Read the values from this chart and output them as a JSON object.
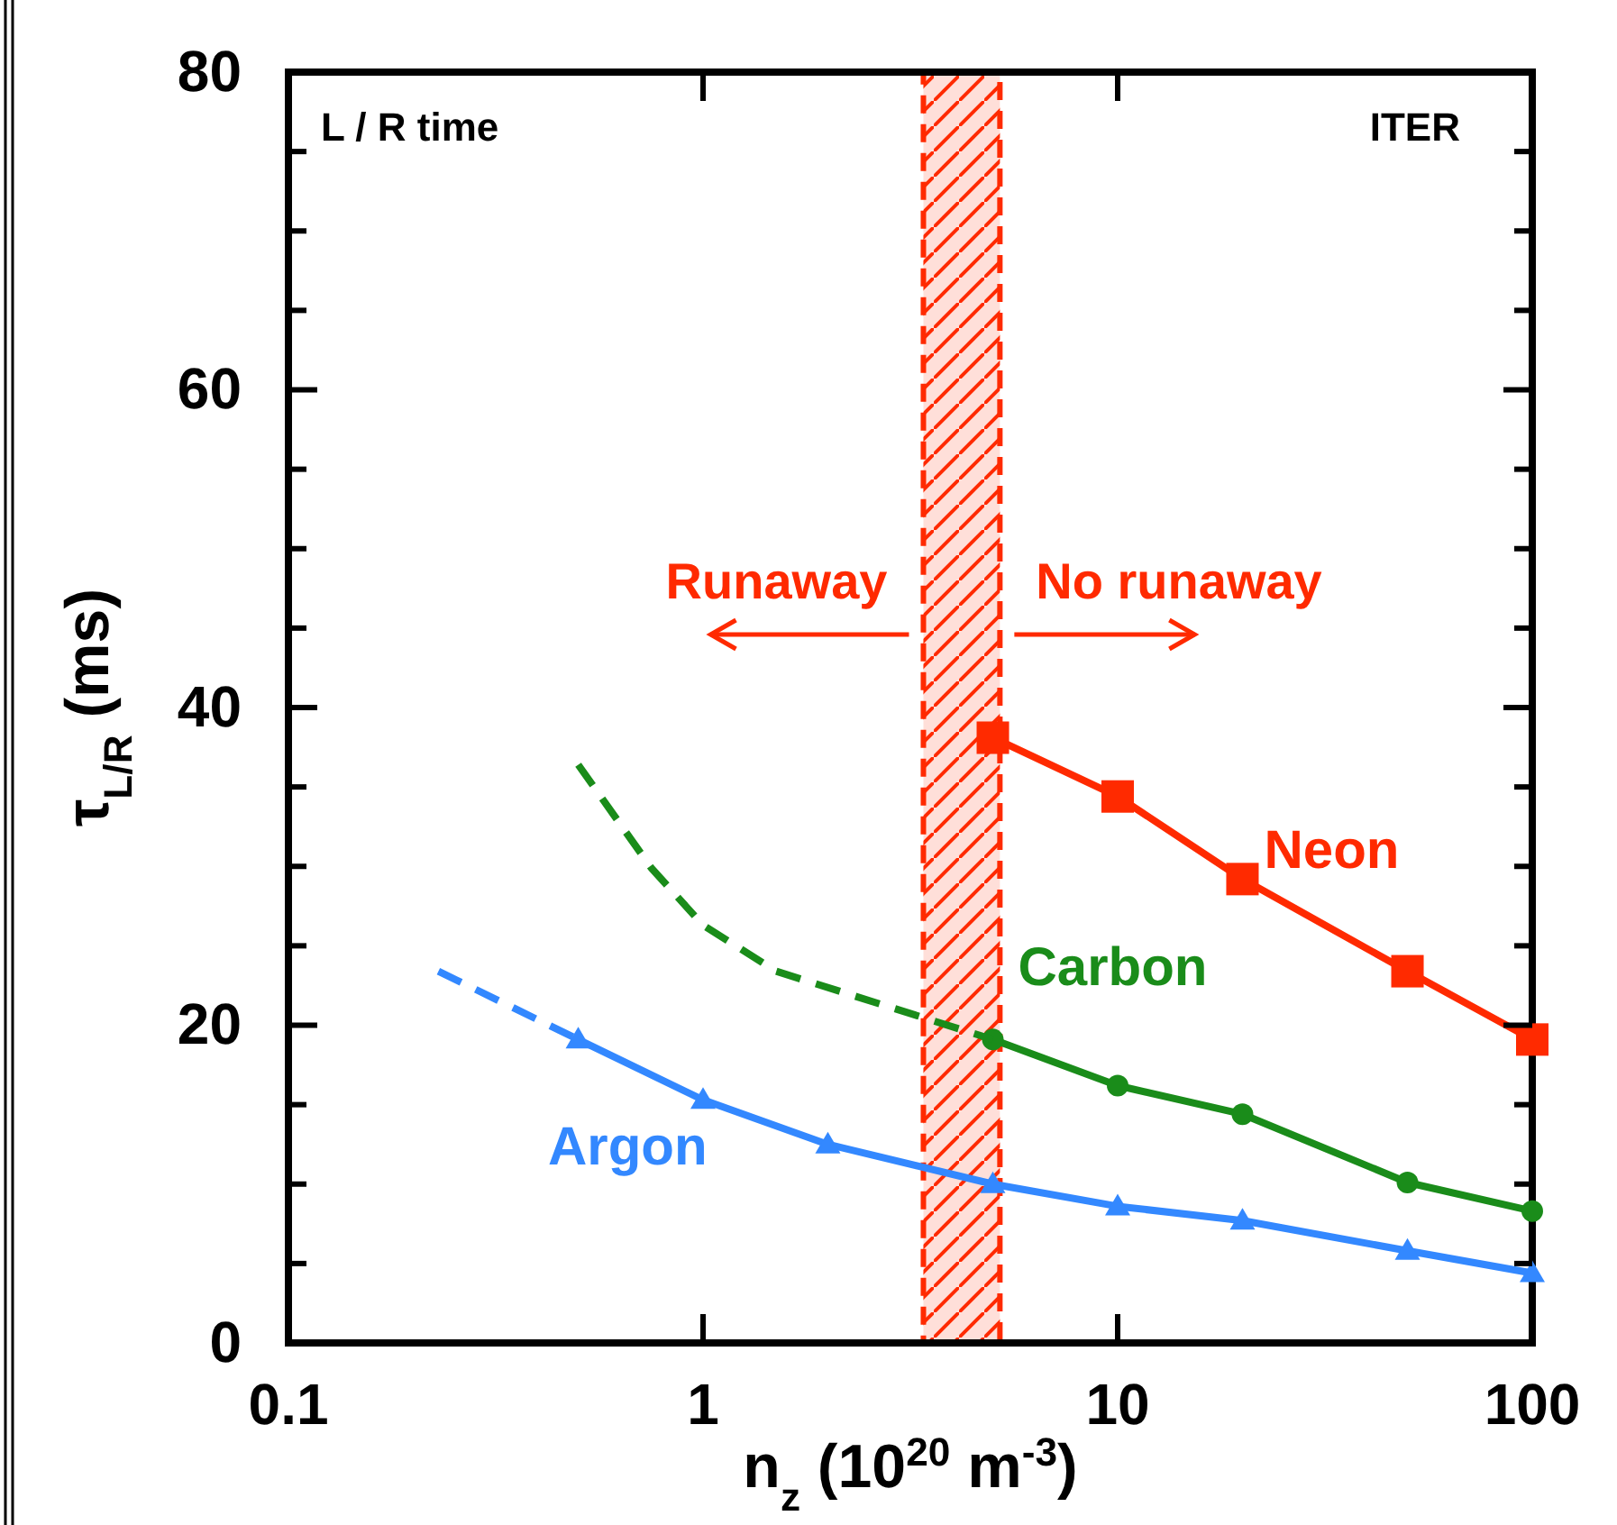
{
  "chart_data": {
    "type": "line",
    "xlabel": "n$_{z}$ (10$^{20}$ m$^{-3}$)",
    "ylabel": "τ$_{L/R}$ (ms)",
    "log": "x",
    "grid": false,
    "xlim": [
      0.1,
      100
    ],
    "ylim": [
      0,
      80
    ],
    "xticks": [
      0.1,
      1,
      10,
      100
    ],
    "yticks": [
      0,
      {
        "value": 5,
        "label": null
      },
      {
        "value": 10,
        "label": null
      },
      {
        "value": 15,
        "label": null
      },
      20,
      {
        "value": 25,
        "label": null
      },
      {
        "value": 30,
        "label": null
      },
      {
        "value": 35,
        "label": null
      },
      40,
      {
        "value": 45,
        "label": null
      },
      {
        "value": 50,
        "label": null
      },
      {
        "value": 55,
        "label": null
      },
      60,
      {
        "value": 65,
        "label": null
      },
      {
        "value": 70,
        "label": null
      },
      {
        "value": 75,
        "label": null
      },
      80
    ],
    "series": [
      {
        "name": "Neon",
        "color": "#ff2a00",
        "marker": "square",
        "line_style": "solid",
        "x": [
          5,
          10,
          20,
          50,
          100
        ],
        "values": [
          38.1,
          34.4,
          29.2,
          23.4,
          19.1
        ]
      },
      {
        "name": "Carbon",
        "color": "#1a8c1a",
        "marker": "circle",
        "line_style": "solid",
        "x": [
          5,
          10,
          20,
          50,
          100
        ],
        "values": [
          19.1,
          16.2,
          14.4,
          10.1,
          8.3
        ]
      },
      {
        "color": "#1a8c1a",
        "marker": "none",
        "line_style": "dashed",
        "x": [
          0.5,
          0.75,
          1,
          1.5,
          5
        ],
        "values": [
          36.4,
          29.9,
          26.3,
          23.4,
          19.1
        ]
      },
      {
        "name": "Argon",
        "color": "#3388ff",
        "marker": "triangle",
        "line_style": "solid",
        "x": [
          0.5,
          1,
          2,
          5,
          10,
          20,
          50,
          100
        ],
        "values": [
          19.1,
          15.3,
          12.5,
          10.0,
          8.6,
          7.7,
          5.8,
          4.4
        ]
      },
      {
        "color": "#3388ff",
        "marker": "none",
        "line_style": "dashed",
        "x": [
          0.23,
          0.5
        ],
        "values": [
          23.4,
          19.1
        ]
      }
    ],
    "bands": [
      {
        "axis": "x",
        "from": 3.4,
        "to": 5.2,
        "color": "#ff2a00"
      }
    ],
    "annotations": [
      "L / R time",
      "ITER",
      "Runaway",
      "No runaway"
    ]
  }
}
